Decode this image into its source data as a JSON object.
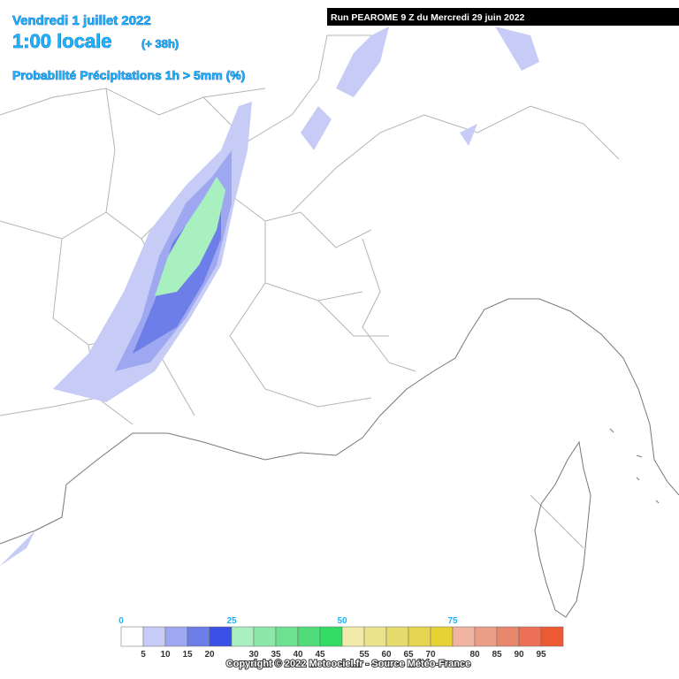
{
  "header": {
    "date": "Vendredi 1 juillet 2022",
    "time": "1:00 locale",
    "lead": "(+ 38h)",
    "product": "Probabilité Précipitations 1h > 5mm (%)",
    "run": "Run PEAROME 9 Z du Mercredi 29 juin 2022"
  },
  "legend": {
    "colors": [
      "#ffffff",
      "#c6ccf5",
      "#9ea8f0",
      "#6e7ee8",
      "#3c50e6",
      "#a8f0c0",
      "#8ce8a8",
      "#6ee090",
      "#50dc78",
      "#32dc64",
      "#f0ebaa",
      "#ebe38c",
      "#e6dc6e",
      "#e6d550",
      "#e6d232",
      "#f0b4a0",
      "#eb9e87",
      "#e6876e",
      "#eb7055",
      "#eb5a32"
    ],
    "top_labels": [
      0,
      25,
      50,
      75
    ],
    "bottom_labels": [
      5,
      10,
      15,
      20,
      30,
      35,
      40,
      45,
      55,
      60,
      65,
      70,
      80,
      85,
      90,
      95
    ]
  },
  "footer": {
    "copyright": "Copyright © 2022 Meteociel.fr - Source Météo-France"
  }
}
